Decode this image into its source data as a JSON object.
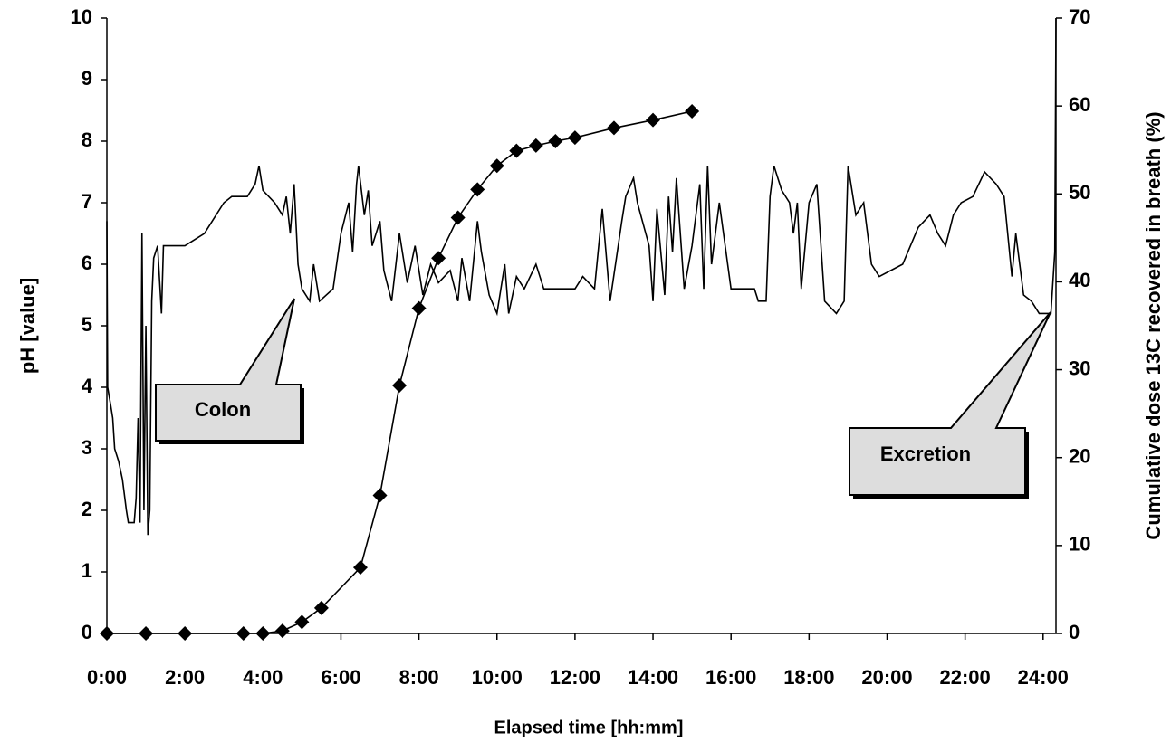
{
  "chart_data": {
    "type": "line",
    "x_label": "Elapsed time [hh:mm]",
    "y_label": "pH [value]",
    "y2_label": "Cumulative dose 13C recovered in breath (%)",
    "annotations": [
      "Colon",
      "Excretion"
    ],
    "xlim": [
      0,
      24.33
    ],
    "xticks": [
      {
        "value": 0,
        "label": "0:00"
      },
      {
        "value": 2,
        "label": "2:00"
      },
      {
        "value": 4,
        "label": "4:00"
      },
      {
        "value": 6,
        "label": "6:00"
      },
      {
        "value": 8,
        "label": "8:00"
      },
      {
        "value": 10,
        "label": "10:00"
      },
      {
        "value": 12,
        "label": "12:00"
      },
      {
        "value": 14,
        "label": "14:00"
      },
      {
        "value": 16,
        "label": "16:00"
      },
      {
        "value": 18,
        "label": "18:00"
      },
      {
        "value": 20,
        "label": "20:00"
      },
      {
        "value": 22,
        "label": "22:00"
      },
      {
        "value": 24,
        "label": "24:00"
      }
    ],
    "ylim": [
      0,
      10
    ],
    "yticks": [
      0,
      1,
      2,
      3,
      4,
      5,
      6,
      7,
      8,
      9,
      10
    ],
    "y2lim": [
      0,
      70
    ],
    "y2ticks": [
      0,
      10,
      20,
      30,
      40,
      50,
      60,
      70
    ],
    "series": [
      {
        "name": "pH",
        "color": "#000000",
        "x": [
          0,
          0.02,
          0.1,
          0.15,
          0.2,
          0.3,
          0.4,
          0.5,
          0.55,
          0.7,
          0.75,
          0.8,
          0.85,
          0.9,
          0.95,
          1.0,
          1.05,
          1.1,
          1.15,
          1.2,
          1.3,
          1.4,
          1.45,
          2.0,
          2.5,
          2.8,
          3.0,
          3.2,
          3.6,
          3.8,
          3.9,
          4.0,
          4.3,
          4.5,
          4.6,
          4.7,
          4.8,
          4.9,
          5.0,
          5.2,
          5.3,
          5.45,
          5.8,
          6.0,
          6.2,
          6.3,
          6.4,
          6.45,
          6.6,
          6.7,
          6.8,
          7.0,
          7.1,
          7.3,
          7.5,
          7.7,
          7.9,
          8.1,
          8.3,
          8.5,
          8.8,
          9.0,
          9.1,
          9.3,
          9.5,
          9.6,
          9.8,
          10.0,
          10.2,
          10.3,
          10.5,
          10.7,
          11.0,
          11.2,
          12.0,
          12.2,
          12.5,
          12.7,
          12.9,
          13.2,
          13.3,
          13.5,
          13.6,
          13.9,
          14.0,
          14.1,
          14.3,
          14.4,
          14.5,
          14.6,
          14.8,
          15.0,
          15.2,
          15.3,
          15.4,
          15.5,
          15.7,
          16.0,
          16.6,
          16.7,
          16.9,
          17.0,
          17.1,
          17.3,
          17.5,
          17.6,
          17.7,
          17.8,
          18.0,
          18.2,
          18.4,
          18.7,
          18.9,
          19.0,
          19.2,
          19.4,
          19.6,
          19.8,
          20.4,
          20.8,
          21.1,
          21.3,
          21.5,
          21.7,
          21.9,
          22.2,
          22.5,
          22.8,
          23.0,
          23.2,
          23.3,
          23.5,
          23.7,
          23.9,
          24.2,
          24.3,
          24.33
        ],
        "values": [
          6.7,
          4.0,
          3.7,
          3.5,
          3.0,
          2.8,
          2.5,
          2.0,
          1.8,
          1.8,
          2.2,
          3.5,
          1.8,
          6.5,
          2.0,
          5.0,
          1.6,
          2.0,
          5.4,
          6.1,
          6.3,
          5.2,
          6.3,
          6.3,
          6.5,
          6.8,
          7.0,
          7.1,
          7.1,
          7.3,
          7.6,
          7.2,
          7.0,
          6.8,
          7.1,
          6.5,
          7.3,
          6.0,
          5.6,
          5.4,
          6.0,
          5.4,
          5.6,
          6.5,
          7.0,
          6.2,
          7.3,
          7.6,
          6.8,
          7.2,
          6.3,
          6.7,
          5.9,
          5.4,
          6.5,
          5.7,
          6.3,
          5.5,
          6.0,
          5.7,
          5.9,
          5.4,
          6.1,
          5.4,
          6.7,
          6.2,
          5.5,
          5.2,
          6.0,
          5.2,
          5.8,
          5.6,
          6.0,
          5.6,
          5.6,
          5.8,
          5.6,
          6.9,
          5.4,
          6.7,
          7.1,
          7.4,
          7.0,
          6.3,
          5.4,
          6.9,
          5.5,
          7.1,
          6.2,
          7.4,
          5.6,
          6.3,
          7.3,
          5.6,
          7.6,
          6.0,
          7.0,
          5.6,
          5.6,
          5.4,
          5.4,
          7.1,
          7.6,
          7.2,
          7.0,
          6.5,
          7.0,
          5.6,
          7.0,
          7.3,
          5.4,
          5.2,
          5.4,
          7.6,
          6.8,
          7.0,
          6.0,
          5.8,
          6.0,
          6.6,
          6.8,
          6.5,
          6.3,
          6.8,
          7.0,
          7.1,
          7.5,
          7.3,
          7.1,
          5.8,
          6.5,
          5.5,
          5.4,
          5.2,
          5.2,
          6.2,
          10
        ]
      },
      {
        "name": "Cumulative dose",
        "color": "#000000",
        "axis": "y2",
        "marker": "diamond",
        "x": [
          0,
          1,
          2,
          3.5,
          4,
          4.5,
          5,
          5.5,
          6.5,
          7,
          7.5,
          8,
          8.5,
          9,
          9.5,
          10,
          10.5,
          11,
          11.5,
          12,
          13,
          14,
          15
        ],
        "values": [
          0,
          0,
          0,
          0,
          0,
          0.3,
          1.3,
          2.9,
          7.5,
          15.7,
          28.2,
          37,
          42.7,
          47.3,
          50.5,
          53.2,
          54.9,
          55.5,
          56,
          56.4,
          57.5,
          58.4,
          59.4
        ]
      }
    ]
  }
}
